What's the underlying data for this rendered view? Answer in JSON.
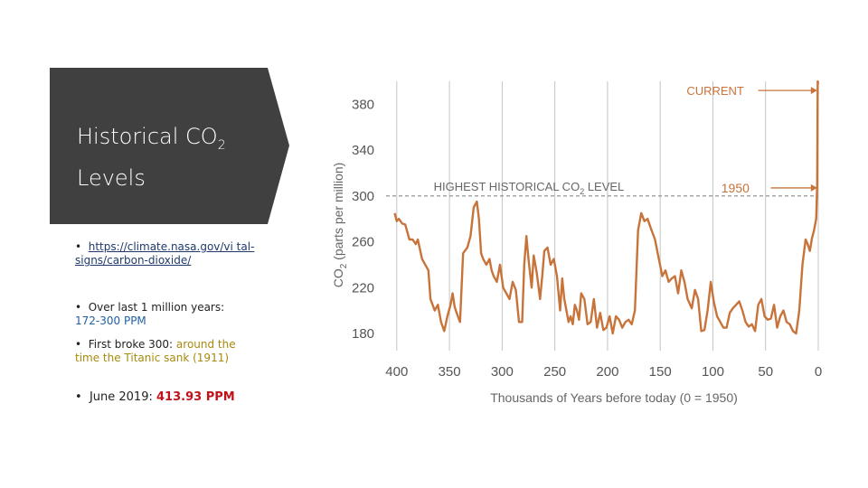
{
  "title": {
    "main": "Historical CO",
    "sub": "2",
    "line2": "Levels"
  },
  "bullets": {
    "link": "https://climate.nasa.gov/vi tal-signs/carbon-dioxide/",
    "b1_label": "Over last 1 million years:",
    "b1_value": "172-300 PPM",
    "b2_label": "First broke 300:",
    "b2_value": "around the time the Titanic sank (1911)",
    "b3_label": "June 2019:",
    "b3_value": "413.93 PPM"
  },
  "colors": {
    "panel": "#404040",
    "line": "#c8733a",
    "grid": "#c4c4c4",
    "blue": "#1f5fa3",
    "olive": "#a68a0f",
    "red": "#c0121b"
  },
  "chart_data": {
    "type": "line",
    "xlabel": "Thousands of Years before today (0 = 1950)",
    "ylabel": "CO2 (parts per million)",
    "x_ticks": [
      "400",
      "350",
      "300",
      "250",
      "200",
      "150",
      "100",
      "50",
      "0"
    ],
    "y_ticks": [
      "380",
      "340",
      "300",
      "260",
      "220",
      "180"
    ],
    "xlim": [
      405,
      0
    ],
    "ylim": [
      165,
      400
    ],
    "annotations": {
      "current": "CURRENT",
      "highest": "HIGHEST HISTORICAL CO",
      "highest_sub": "2",
      "highest_tail": "LEVEL",
      "y1950": "1950"
    },
    "reference_line": 300,
    "series": [
      {
        "x": [
          402,
          400,
          398,
          395,
          392,
          388,
          385,
          382,
          380,
          376,
          373,
          370,
          368,
          364,
          361,
          358,
          355,
          352,
          349,
          347,
          345,
          342,
          340,
          337,
          333,
          330,
          327,
          324,
          322,
          320,
          318,
          315,
          312,
          310,
          308,
          305,
          302,
          299,
          296,
          293,
          290,
          287,
          284,
          281,
          279,
          277,
          275,
          272,
          270,
          267,
          264,
          262,
          260,
          257,
          254,
          251,
          248,
          245,
          243,
          241,
          239,
          237,
          235,
          233,
          231,
          229,
          227,
          225,
          222,
          219,
          216,
          213,
          210,
          207,
          204,
          201,
          198,
          195,
          192,
          189,
          186,
          183,
          180,
          177,
          174,
          171,
          168,
          165,
          162,
          159,
          155,
          152,
          148,
          145,
          142,
          139,
          136,
          133,
          130,
          127,
          124,
          120,
          117,
          114,
          111,
          108,
          105,
          102,
          99,
          96,
          93,
          90,
          87,
          84,
          81,
          78,
          75,
          72,
          69,
          66,
          63,
          60,
          57,
          54,
          51,
          48,
          45,
          42,
          39,
          36,
          33,
          30,
          27,
          24,
          21,
          18,
          15,
          12,
          10,
          8,
          6,
          4,
          2,
          1,
          0.5,
          0
        ],
        "y": [
          285,
          278,
          280,
          276,
          275,
          262,
          262,
          258,
          262,
          245,
          240,
          235,
          210,
          200,
          205,
          190,
          182,
          195,
          205,
          215,
          203,
          195,
          190,
          250,
          255,
          265,
          290,
          295,
          280,
          250,
          245,
          240,
          245,
          235,
          230,
          225,
          240,
          220,
          215,
          210,
          225,
          218,
          190,
          190,
          240,
          265,
          245,
          220,
          248,
          232,
          210,
          230,
          252,
          255,
          240,
          245,
          230,
          200,
          228,
          210,
          200,
          190,
          195,
          188,
          205,
          200,
          192,
          215,
          210,
          188,
          190,
          210,
          185,
          198,
          183,
          185,
          195,
          180,
          195,
          192,
          185,
          190,
          192,
          188,
          200,
          270,
          285,
          278,
          280,
          272,
          262,
          248,
          230,
          235,
          225,
          228,
          230,
          215,
          235,
          225,
          210,
          202,
          218,
          210,
          182,
          183,
          200,
          225,
          207,
          195,
          190,
          185,
          185,
          198,
          202,
          205,
          208,
          200,
          190,
          186,
          188,
          182,
          205,
          210,
          195,
          192,
          193,
          205,
          185,
          195,
          200,
          190,
          188,
          182,
          180,
          200,
          240,
          262,
          258,
          252,
          263,
          270,
          280,
          310,
          400,
          398
        ]
      }
    ]
  }
}
